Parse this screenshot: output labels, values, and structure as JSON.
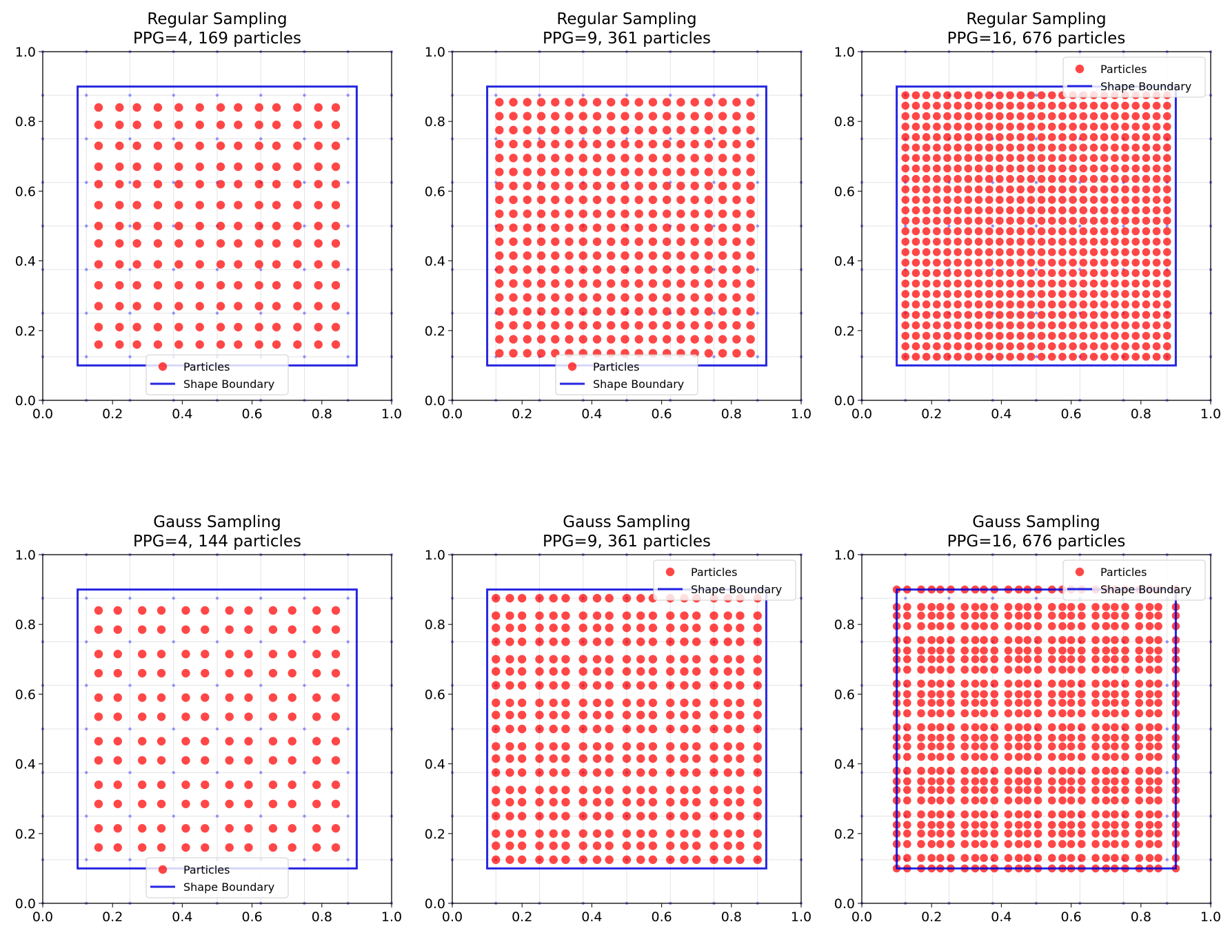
{
  "figure": {
    "legend_particles": "Particles",
    "legend_boundary": "Shape Boundary",
    "particle_color": "#ff0000",
    "boundary_color": "#0000dd",
    "grid_node_color": "#5555ff"
  },
  "chart_data": [
    {
      "type": "scatter",
      "title": "Regular Sampling",
      "subtitle": "PPG=4, 169 particles",
      "xlim": [
        0,
        1
      ],
      "ylim": [
        0,
        1
      ],
      "x_ticks": [
        "0.0",
        "0.2",
        "0.4",
        "0.6",
        "0.8",
        "1.0"
      ],
      "y_ticks": [
        "0.0",
        "0.2",
        "0.4",
        "0.6",
        "0.8",
        "1.0"
      ],
      "grid": true,
      "legend_position": "lower center",
      "boundary": [
        [
          0.1,
          0.1
        ],
        [
          0.9,
          0.1
        ],
        [
          0.9,
          0.9
        ],
        [
          0.1,
          0.9
        ]
      ],
      "grid_nodes": [
        0.0,
        0.125,
        0.25,
        0.375,
        0.5,
        0.625,
        0.75,
        0.875,
        1.0
      ],
      "particle_x": [
        0.16,
        0.22,
        0.27,
        0.33,
        0.39,
        0.45,
        0.51,
        0.56,
        0.62,
        0.67,
        0.73,
        0.79,
        0.84
      ],
      "particle_y": [
        0.16,
        0.21,
        0.27,
        0.33,
        0.39,
        0.45,
        0.5,
        0.56,
        0.62,
        0.67,
        0.73,
        0.79,
        0.84
      ]
    },
    {
      "type": "scatter",
      "title": "Regular Sampling",
      "subtitle": "PPG=9, 361 particles",
      "xlim": [
        0,
        1
      ],
      "ylim": [
        0,
        1
      ],
      "x_ticks": [
        "0.0",
        "0.2",
        "0.4",
        "0.6",
        "0.8",
        "1.0"
      ],
      "y_ticks": [
        "0.0",
        "0.2",
        "0.4",
        "0.6",
        "0.8",
        "1.0"
      ],
      "grid": true,
      "legend_position": "lower center",
      "boundary": [
        [
          0.1,
          0.1
        ],
        [
          0.9,
          0.1
        ],
        [
          0.9,
          0.9
        ],
        [
          0.1,
          0.9
        ]
      ],
      "grid_nodes": [
        0.0,
        0.125,
        0.25,
        0.375,
        0.5,
        0.625,
        0.75,
        0.875,
        1.0
      ],
      "particle_x": [
        0.135,
        0.175,
        0.215,
        0.255,
        0.295,
        0.335,
        0.375,
        0.415,
        0.455,
        0.495,
        0.535,
        0.575,
        0.615,
        0.655,
        0.695,
        0.735,
        0.775,
        0.815,
        0.855
      ],
      "particle_y": [
        0.135,
        0.175,
        0.215,
        0.255,
        0.295,
        0.335,
        0.375,
        0.415,
        0.455,
        0.495,
        0.535,
        0.575,
        0.615,
        0.655,
        0.695,
        0.735,
        0.775,
        0.815,
        0.855
      ]
    },
    {
      "type": "scatter",
      "title": "Regular Sampling",
      "subtitle": "PPG=16, 676 particles",
      "xlim": [
        0,
        1
      ],
      "ylim": [
        0,
        1
      ],
      "x_ticks": [
        "0.0",
        "0.2",
        "0.4",
        "0.6",
        "0.8",
        "1.0"
      ],
      "y_ticks": [
        "0.0",
        "0.2",
        "0.4",
        "0.6",
        "0.8",
        "1.0"
      ],
      "grid": true,
      "legend_position": "upper right",
      "boundary": [
        [
          0.1,
          0.1
        ],
        [
          0.9,
          0.1
        ],
        [
          0.9,
          0.9
        ],
        [
          0.1,
          0.9
        ]
      ],
      "grid_nodes": [
        0.0,
        0.125,
        0.25,
        0.375,
        0.5,
        0.625,
        0.75,
        0.875,
        1.0
      ],
      "particle_x": [
        0.125,
        0.155,
        0.185,
        0.215,
        0.245,
        0.275,
        0.305,
        0.335,
        0.365,
        0.395,
        0.425,
        0.455,
        0.485,
        0.515,
        0.545,
        0.575,
        0.605,
        0.635,
        0.665,
        0.695,
        0.725,
        0.755,
        0.785,
        0.815,
        0.845,
        0.875
      ],
      "particle_y": [
        0.125,
        0.155,
        0.185,
        0.215,
        0.245,
        0.275,
        0.305,
        0.335,
        0.365,
        0.395,
        0.425,
        0.455,
        0.485,
        0.515,
        0.545,
        0.575,
        0.605,
        0.635,
        0.665,
        0.695,
        0.725,
        0.755,
        0.785,
        0.815,
        0.845,
        0.875
      ]
    },
    {
      "type": "scatter",
      "title": "Gauss Sampling",
      "subtitle": "PPG=4, 144 particles",
      "xlim": [
        0,
        1
      ],
      "ylim": [
        0,
        1
      ],
      "x_ticks": [
        "0.0",
        "0.2",
        "0.4",
        "0.6",
        "0.8",
        "1.0"
      ],
      "y_ticks": [
        "0.0",
        "0.2",
        "0.4",
        "0.6",
        "0.8",
        "1.0"
      ],
      "grid": true,
      "legend_position": "lower center",
      "boundary": [
        [
          0.1,
          0.1
        ],
        [
          0.9,
          0.1
        ],
        [
          0.9,
          0.9
        ],
        [
          0.1,
          0.9
        ]
      ],
      "grid_nodes": [
        0.0,
        0.125,
        0.25,
        0.375,
        0.5,
        0.625,
        0.75,
        0.875,
        1.0
      ],
      "particle_x": [
        0.16,
        0.215,
        0.285,
        0.34,
        0.41,
        0.465,
        0.535,
        0.59,
        0.66,
        0.715,
        0.785,
        0.84
      ],
      "particle_y": [
        0.16,
        0.215,
        0.285,
        0.34,
        0.41,
        0.465,
        0.535,
        0.59,
        0.66,
        0.715,
        0.785,
        0.84
      ]
    },
    {
      "type": "scatter",
      "title": "Gauss Sampling",
      "subtitle": "PPG=9, 361 particles",
      "xlim": [
        0,
        1
      ],
      "ylim": [
        0,
        1
      ],
      "x_ticks": [
        "0.0",
        "0.2",
        "0.4",
        "0.6",
        "0.8",
        "1.0"
      ],
      "y_ticks": [
        "0.0",
        "0.2",
        "0.4",
        "0.6",
        "0.8",
        "1.0"
      ],
      "grid": true,
      "legend_position": "upper right",
      "boundary": [
        [
          0.1,
          0.1
        ],
        [
          0.9,
          0.1
        ],
        [
          0.9,
          0.9
        ],
        [
          0.1,
          0.9
        ]
      ],
      "grid_nodes": [
        0.0,
        0.125,
        0.25,
        0.375,
        0.5,
        0.625,
        0.75,
        0.875,
        1.0
      ],
      "particle_x": [
        0.125,
        0.165,
        0.2,
        0.25,
        0.29,
        0.325,
        0.375,
        0.415,
        0.45,
        0.5,
        0.54,
        0.575,
        0.625,
        0.665,
        0.7,
        0.75,
        0.79,
        0.825,
        0.875
      ],
      "particle_y": [
        0.125,
        0.165,
        0.2,
        0.25,
        0.29,
        0.325,
        0.375,
        0.415,
        0.45,
        0.5,
        0.54,
        0.575,
        0.625,
        0.665,
        0.7,
        0.75,
        0.79,
        0.825,
        0.875
      ]
    },
    {
      "type": "scatter",
      "title": "Gauss Sampling",
      "subtitle": "PPG=16, 676 particles",
      "xlim": [
        0,
        1
      ],
      "ylim": [
        0,
        1
      ],
      "x_ticks": [
        "0.0",
        "0.2",
        "0.4",
        "0.6",
        "0.8",
        "1.0"
      ],
      "y_ticks": [
        "0.0",
        "0.2",
        "0.4",
        "0.6",
        "0.8",
        "1.0"
      ],
      "grid": true,
      "legend_position": "upper right",
      "boundary": [
        [
          0.1,
          0.1
        ],
        [
          0.9,
          0.1
        ],
        [
          0.9,
          0.9
        ],
        [
          0.1,
          0.9
        ]
      ],
      "grid_nodes": [
        0.0,
        0.125,
        0.25,
        0.375,
        0.5,
        0.625,
        0.75,
        0.875,
        1.0
      ],
      "particle_x": [
        0.1,
        0.13,
        0.17,
        0.2,
        0.225,
        0.255,
        0.295,
        0.325,
        0.35,
        0.38,
        0.42,
        0.45,
        0.475,
        0.505,
        0.545,
        0.575,
        0.6,
        0.63,
        0.67,
        0.7,
        0.725,
        0.755,
        0.795,
        0.825,
        0.85,
        0.9
      ],
      "particle_y": [
        0.1,
        0.13,
        0.17,
        0.2,
        0.225,
        0.255,
        0.295,
        0.325,
        0.35,
        0.38,
        0.42,
        0.45,
        0.475,
        0.505,
        0.545,
        0.575,
        0.6,
        0.63,
        0.67,
        0.7,
        0.725,
        0.755,
        0.795,
        0.825,
        0.85,
        0.9
      ]
    }
  ]
}
